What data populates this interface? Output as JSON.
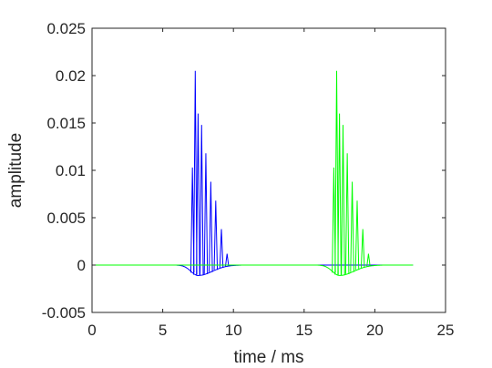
{
  "chart_data": {
    "type": "line",
    "title": "",
    "xlabel": "time / ms",
    "ylabel": "amplitude",
    "xlim": [
      0,
      25
    ],
    "ylim": [
      -0.005,
      0.025
    ],
    "x_ticks": [
      0,
      5,
      10,
      15,
      20,
      25
    ],
    "x_tick_labels": [
      "0",
      "5",
      "10",
      "15",
      "20",
      "25"
    ],
    "y_ticks": [
      -0.005,
      0,
      0.005,
      0.01,
      0.015,
      0.02,
      0.025
    ],
    "y_tick_labels": [
      "-0.005",
      "0",
      "0.005",
      "0.01",
      "0.015",
      "0.02",
      "0.025"
    ],
    "grid": false,
    "legend": "none",
    "series": [
      {
        "color": "#0000ff",
        "x_range": [
          0,
          22.7
        ],
        "dip": {
          "start": 6.0,
          "center": 7.5,
          "end": 10.5,
          "min": -0.0011
        },
        "spikes": [
          {
            "x": 7.1,
            "y": 0.0103
          },
          {
            "x": 7.3,
            "y": 0.0205
          },
          {
            "x": 7.5,
            "y": 0.016
          },
          {
            "x": 7.75,
            "y": 0.0148
          },
          {
            "x": 8.05,
            "y": 0.0118
          },
          {
            "x": 8.4,
            "y": 0.0088
          },
          {
            "x": 8.75,
            "y": 0.0068
          },
          {
            "x": 9.15,
            "y": 0.0038
          },
          {
            "x": 9.55,
            "y": 0.0012
          }
        ]
      },
      {
        "color": "#00ff00",
        "x_range": [
          0,
          22.7
        ],
        "dip": {
          "start": 16.0,
          "center": 17.5,
          "end": 20.5,
          "min": -0.0011
        },
        "spikes": [
          {
            "x": 17.1,
            "y": 0.0103
          },
          {
            "x": 17.3,
            "y": 0.0205
          },
          {
            "x": 17.5,
            "y": 0.016
          },
          {
            "x": 17.75,
            "y": 0.0148
          },
          {
            "x": 18.05,
            "y": 0.0118
          },
          {
            "x": 18.4,
            "y": 0.0088
          },
          {
            "x": 18.75,
            "y": 0.0068
          },
          {
            "x": 19.15,
            "y": 0.0038
          },
          {
            "x": 19.55,
            "y": 0.0012
          }
        ]
      }
    ]
  }
}
